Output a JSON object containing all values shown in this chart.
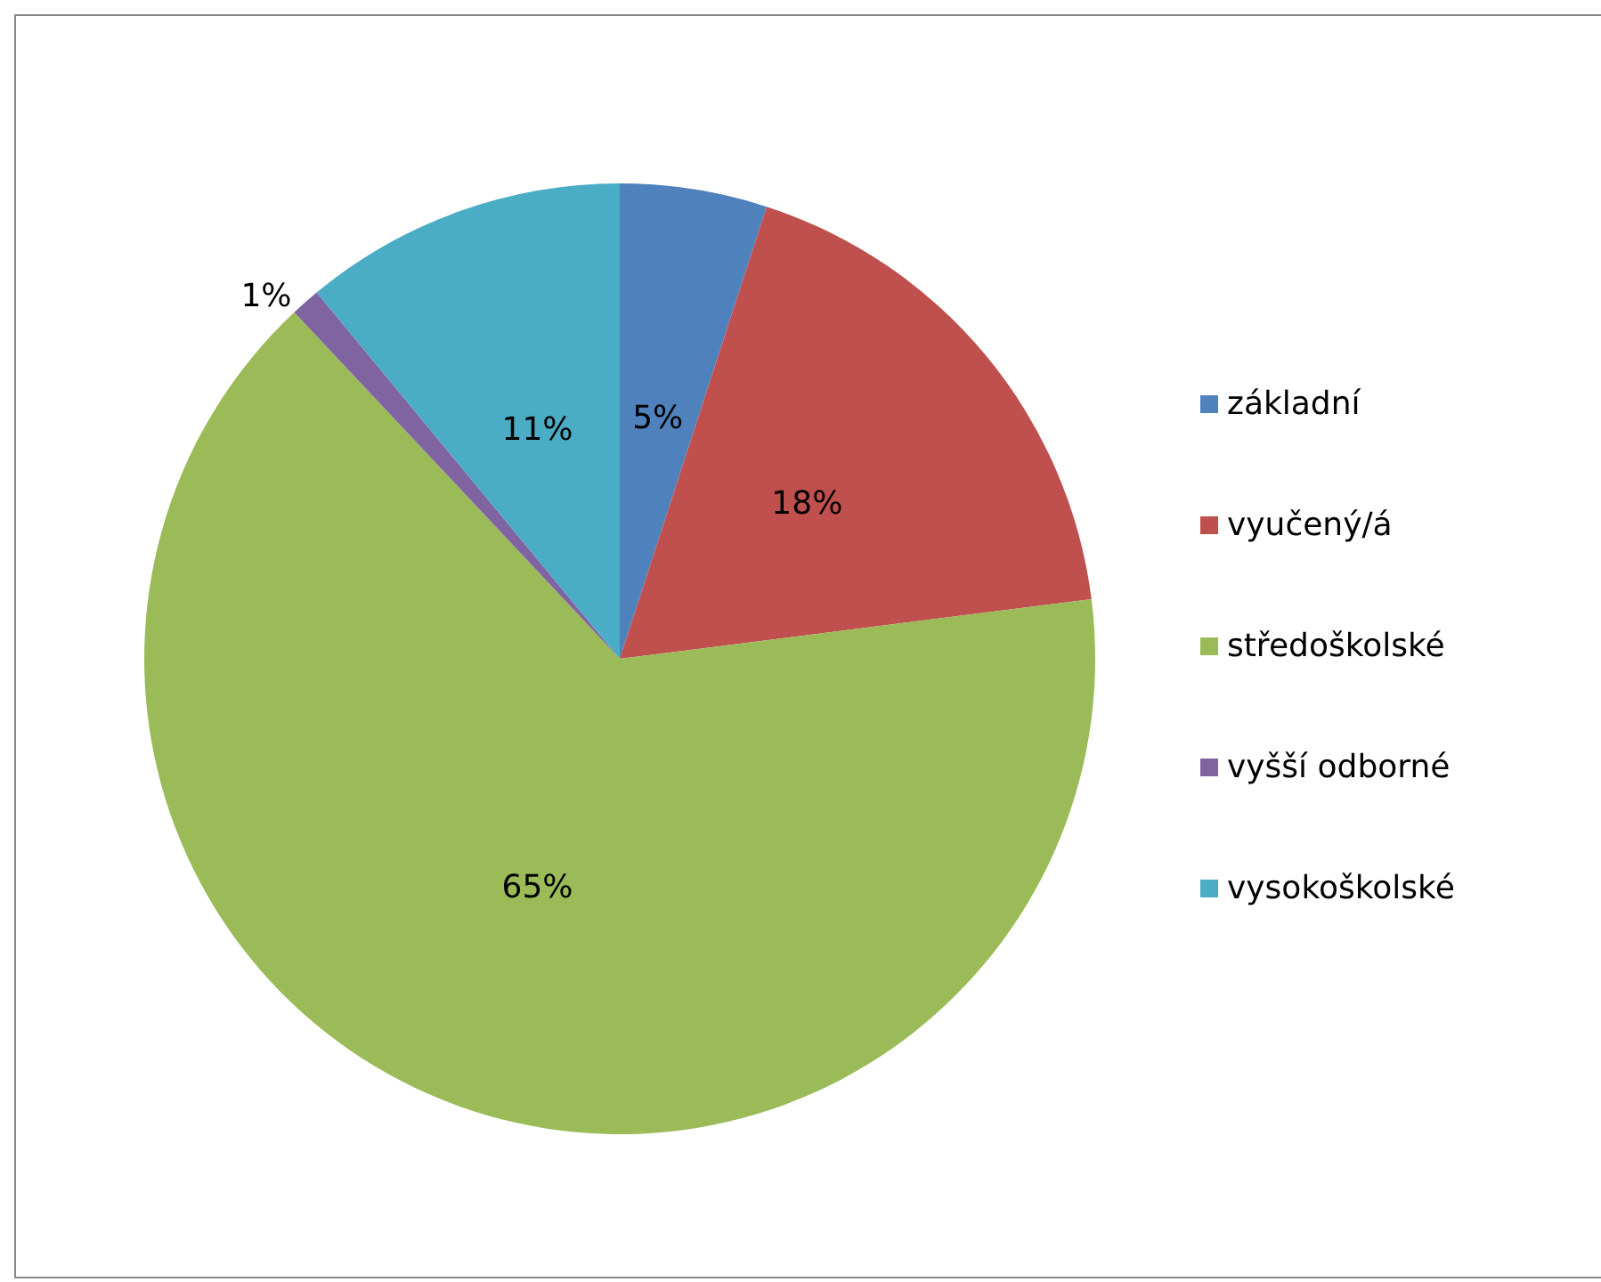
{
  "chart_data": {
    "type": "pie",
    "categories": [
      "základní",
      "vyučený/á",
      "středoškolské",
      "vyšší odborné",
      "vysokoškolské"
    ],
    "values": [
      5,
      18,
      65,
      1,
      11
    ],
    "colors": [
      "#4f81bd",
      "#c0504d",
      "#9bbb59",
      "#8064a2",
      "#4bacc6"
    ],
    "value_labels": [
      "5%",
      "18%",
      "65%",
      "1%",
      "11%"
    ],
    "legend": "right"
  }
}
